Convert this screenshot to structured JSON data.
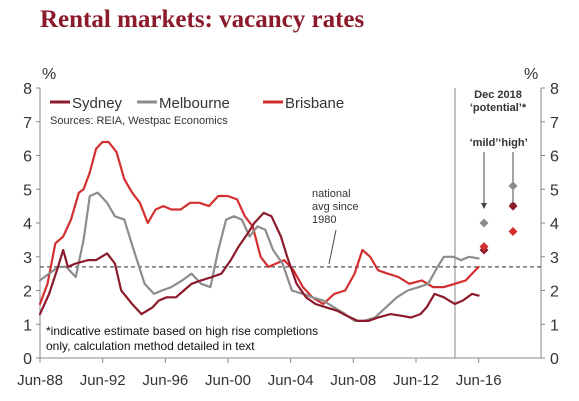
{
  "chart_data": {
    "type": "line",
    "title": "Rental markets: vacancy rates",
    "ylabel_left": "%",
    "ylabel_right": "%",
    "ylim": [
      0,
      8
    ],
    "yticks": [
      0,
      1,
      2,
      3,
      4,
      5,
      6,
      7,
      8
    ],
    "xlim": [
      1988.42,
      2020.4
    ],
    "xticks": [
      {
        "label": "Jun-88",
        "x": 1988.42
      },
      {
        "label": "Jun-92",
        "x": 1992.42
      },
      {
        "label": "Jun-96",
        "x": 1996.42
      },
      {
        "label": "Jun-00",
        "x": 2000.42
      },
      {
        "label": "Jun-04",
        "x": 2004.42
      },
      {
        "label": "Jun-08",
        "x": 2008.42
      },
      {
        "label": "Jun-12",
        "x": 2012.42
      },
      {
        "label": "Jun-16",
        "x": 2016.42
      }
    ],
    "legend": [
      "Sydney",
      "Melbourne",
      "Brisbane"
    ],
    "source": "Sources: REIA, Westpac Economics",
    "reference_label": "national avg since 1980",
    "reference_label_lines": [
      "national",
      "avg since",
      "1980"
    ],
    "reference_value": 2.7,
    "footnote_lines": [
      "*indicative estimate based on high rise completions",
      "only, calculation method detailed in text"
    ],
    "series": [
      {
        "name": "Sydney",
        "color": "#8B1A2B",
        "x": [
          1988.42,
          1989.0,
          1989.5,
          1989.9,
          1990.2,
          1990.7,
          1991.5,
          1992.0,
          1992.7,
          1993.2,
          1993.6,
          1994.3,
          1994.9,
          1995.6,
          1996.0,
          1996.5,
          1997.1,
          1997.6,
          1998.1,
          1998.7,
          1999.4,
          2000.0,
          2000.6,
          2001.1,
          2001.7,
          2002.1,
          2002.7,
          2003.2,
          2003.8,
          2004.2,
          2004.8,
          2005.4,
          2006.0,
          2006.7,
          2007.4,
          2008.0,
          2008.7,
          2009.4,
          2010.0,
          2010.8,
          2011.5,
          2012.1,
          2012.7,
          2013.1,
          2013.6,
          2014.2,
          2014.9,
          2015.4,
          2016.0,
          2016.42
        ],
        "values": [
          1.3,
          1.9,
          2.6,
          3.2,
          2.7,
          2.8,
          2.9,
          2.9,
          3.1,
          2.8,
          2.0,
          1.6,
          1.3,
          1.5,
          1.7,
          1.8,
          1.8,
          2.0,
          2.2,
          2.3,
          2.4,
          2.5,
          2.9,
          3.3,
          3.7,
          4.0,
          4.3,
          4.2,
          3.6,
          3.0,
          2.2,
          1.8,
          1.6,
          1.5,
          1.4,
          1.25,
          1.1,
          1.1,
          1.2,
          1.3,
          1.25,
          1.2,
          1.3,
          1.5,
          1.9,
          1.8,
          1.6,
          1.7,
          1.9,
          1.85
        ]
      },
      {
        "name": "Melbourne",
        "color": "#8C8C8C",
        "x": [
          1988.42,
          1989.0,
          1989.6,
          1990.1,
          1990.7,
          1991.2,
          1991.6,
          1992.1,
          1992.7,
          1993.2,
          1993.8,
          1994.4,
          1995.1,
          1995.7,
          1996.2,
          1996.8,
          1997.5,
          1998.1,
          1998.7,
          1999.3,
          1999.8,
          2000.3,
          2000.8,
          2001.3,
          2001.8,
          2002.3,
          2002.8,
          2003.3,
          2003.9,
          2004.5,
          2005.2,
          2005.8,
          2006.5,
          2007.2,
          2007.9,
          2008.5,
          2009.1,
          2009.8,
          2010.5,
          2011.2,
          2011.9,
          2012.6,
          2013.2,
          2013.8,
          2014.2,
          2014.8,
          2015.3,
          2015.8,
          2016.42
        ],
        "values": [
          2.3,
          2.5,
          2.7,
          2.7,
          2.4,
          3.5,
          4.8,
          4.9,
          4.6,
          4.2,
          4.1,
          3.2,
          2.2,
          1.9,
          2.0,
          2.1,
          2.3,
          2.5,
          2.2,
          2.1,
          3.2,
          4.1,
          4.2,
          4.1,
          3.6,
          3.9,
          3.8,
          3.2,
          2.8,
          2.0,
          1.9,
          1.8,
          1.7,
          1.5,
          1.3,
          1.1,
          1.1,
          1.2,
          1.5,
          1.8,
          2.0,
          2.1,
          2.2,
          2.7,
          3.0,
          3.0,
          2.9,
          3.0,
          2.95
        ]
      },
      {
        "name": "Brisbane",
        "color": "#D32F2F",
        "x": [
          1988.42,
          1988.9,
          1989.4,
          1989.9,
          1990.4,
          1990.9,
          1991.2,
          1991.6,
          1992.0,
          1992.4,
          1992.8,
          1993.3,
          1993.8,
          1994.3,
          1994.8,
          1995.3,
          1995.8,
          1996.3,
          1996.8,
          1997.4,
          1998.0,
          1998.6,
          1999.2,
          1999.8,
          2000.4,
          2001.0,
          2001.5,
          2002.0,
          2002.5,
          2003.0,
          2003.5,
          2004.0,
          2004.6,
          2005.2,
          2005.8,
          2006.5,
          2007.2,
          2007.9,
          2008.5,
          2009.0,
          2009.5,
          2010.0,
          2010.6,
          2011.3,
          2012.0,
          2012.8,
          2013.5,
          2014.2,
          2014.9,
          2015.6,
          2016.0,
          2016.42
        ],
        "values": [
          1.6,
          2.2,
          3.4,
          3.6,
          4.1,
          4.9,
          5.0,
          5.5,
          6.2,
          6.4,
          6.4,
          6.1,
          5.3,
          4.9,
          4.6,
          4.0,
          4.4,
          4.5,
          4.4,
          4.4,
          4.6,
          4.6,
          4.5,
          4.8,
          4.8,
          4.7,
          4.2,
          3.9,
          3.0,
          2.7,
          2.8,
          2.9,
          2.6,
          2.1,
          1.8,
          1.6,
          1.9,
          2.0,
          2.5,
          3.2,
          3.0,
          2.6,
          2.5,
          2.4,
          2.2,
          2.3,
          2.1,
          2.1,
          2.2,
          2.3,
          2.5,
          2.7
        ]
      }
    ],
    "projection": {
      "header_lines": [
        "Dec 2018",
        "‘potential’*"
      ],
      "scenarios": [
        "‘mild’",
        "‘high’"
      ],
      "points": [
        {
          "scenario": "‘mild’",
          "city": "Sydney",
          "value": 3.2,
          "color": "#8B1A2B"
        },
        {
          "scenario": "‘mild’",
          "city": "Melbourne",
          "value": 4.0,
          "color": "#8C8C8C"
        },
        {
          "scenario": "‘mild’",
          "city": "Brisbane",
          "value": 3.3,
          "color": "#D32F2F"
        },
        {
          "scenario": "‘high’",
          "city": "Sydney",
          "value": 4.5,
          "color": "#8B1A2B"
        },
        {
          "scenario": "‘high’",
          "city": "Melbourne",
          "value": 5.1,
          "color": "#8C8C8C"
        },
        {
          "scenario": "‘high’",
          "city": "Brisbane",
          "value": 3.75,
          "color": "#D32F2F"
        }
      ]
    }
  }
}
